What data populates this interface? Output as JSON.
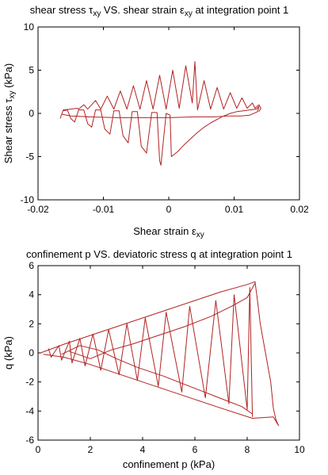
{
  "chart_data": [
    {
      "type": "line",
      "title_parts": [
        "shear stress ",
        "τ",
        "xy",
        " VS. shear strain ",
        "ε",
        "xy",
        " at integration point 1"
      ],
      "xlabel_parts": [
        "Shear strain ",
        "ε",
        "xy"
      ],
      "ylabel_parts": [
        "Shear stress ",
        "τ",
        "xy",
        " (kPa)"
      ],
      "xlim": [
        -0.02,
        0.02
      ],
      "ylim": [
        -10,
        10
      ],
      "xticks": [
        -0.02,
        -0.01,
        0,
        0.01,
        0.02
      ],
      "xtick_labels": [
        "-0.02",
        "-0.01",
        "0",
        "0.01",
        "0.02"
      ],
      "yticks": [
        -10,
        -5,
        0,
        5,
        10
      ],
      "ytick_labels": [
        "-10",
        "-5",
        "0",
        "5",
        "10"
      ],
      "grid": false,
      "color": "#b22222",
      "series": [
        {
          "points": [
            [
              -0.0166,
              -0.6
            ],
            [
              -0.0162,
              0.3
            ],
            [
              -0.0155,
              0.4
            ],
            [
              -0.015,
              -0.6
            ],
            [
              -0.0144,
              -1.0
            ],
            [
              -0.0138,
              0.4
            ],
            [
              -0.013,
              0.4
            ],
            [
              -0.0124,
              -1.2
            ],
            [
              -0.0118,
              -1.6
            ],
            [
              -0.0112,
              0.4
            ],
            [
              -0.0104,
              0.4
            ],
            [
              -0.0098,
              -1.8
            ],
            [
              -0.009,
              -2.4
            ],
            [
              -0.0084,
              0.3
            ],
            [
              -0.0076,
              0.3
            ],
            [
              -0.007,
              -2.6
            ],
            [
              -0.0062,
              -3.4
            ],
            [
              -0.0056,
              0.2
            ],
            [
              -0.0048,
              0.2
            ],
            [
              -0.0042,
              -3.8
            ],
            [
              -0.0034,
              -4.6
            ],
            [
              -0.0026,
              0.1
            ],
            [
              -0.0018,
              0.1
            ],
            [
              -0.0014,
              -5.5
            ],
            [
              -0.0012,
              -6.0
            ],
            [
              -0.0004,
              0.0
            ],
            [
              0.0002,
              -0.2
            ],
            [
              0.0004,
              -5.0
            ],
            [
              0.0014,
              -4.4
            ],
            [
              0.0024,
              -3.6
            ],
            [
              0.0034,
              -2.9
            ],
            [
              0.0044,
              -2.2
            ],
            [
              0.0054,
              -1.6
            ],
            [
              0.0064,
              -1.1
            ],
            [
              0.0074,
              -0.7
            ],
            [
              0.0084,
              -0.3
            ],
            [
              0.0094,
              0.0
            ],
            [
              0.0104,
              0.2
            ],
            [
              0.0114,
              0.3
            ],
            [
              0.0124,
              0.4
            ],
            [
              0.0134,
              0.5
            ],
            [
              0.0138,
              0.8
            ],
            [
              0.0136,
              0.2
            ],
            [
              0.0124,
              -0.2
            ],
            [
              0.011,
              -0.3
            ],
            [
              0.009,
              -0.3
            ],
            [
              0.007,
              -0.4
            ],
            [
              0.004,
              -0.4
            ],
            [
              0.0,
              -0.5
            ],
            [
              -0.004,
              -0.5
            ],
            [
              -0.008,
              -0.5
            ],
            [
              -0.012,
              -0.4
            ],
            [
              -0.015,
              -0.3
            ],
            [
              -0.0163,
              -0.1
            ]
          ]
        },
        {
          "points": [
            [
              -0.0162,
              0.4
            ],
            [
              -0.015,
              0.5
            ],
            [
              -0.014,
              0.6
            ],
            [
              -0.0138,
              0.5
            ],
            [
              -0.013,
              1.0
            ],
            [
              -0.0124,
              0.5
            ],
            [
              -0.0112,
              1.5
            ],
            [
              -0.0104,
              0.5
            ],
            [
              -0.0094,
              2.0
            ],
            [
              -0.0084,
              0.5
            ],
            [
              -0.0074,
              2.6
            ],
            [
              -0.0064,
              0.5
            ],
            [
              -0.0054,
              3.2
            ],
            [
              -0.0044,
              0.5
            ],
            [
              -0.0034,
              3.8
            ],
            [
              -0.0024,
              0.5
            ],
            [
              -0.0014,
              4.4
            ],
            [
              -0.0004,
              0.5
            ],
            [
              0.0006,
              5.0
            ],
            [
              0.0016,
              0.6
            ],
            [
              0.0026,
              5.5
            ],
            [
              0.0036,
              1.2
            ],
            [
              0.004,
              6.0
            ],
            [
              0.0044,
              0.4
            ],
            [
              0.0054,
              3.8
            ],
            [
              0.0064,
              0.5
            ],
            [
              0.0074,
              3.0
            ],
            [
              0.0084,
              0.5
            ],
            [
              0.0094,
              2.4
            ],
            [
              0.0104,
              0.6
            ],
            [
              0.0112,
              1.8
            ],
            [
              0.012,
              0.6
            ],
            [
              0.0128,
              1.2
            ],
            [
              0.0132,
              0.6
            ],
            [
              0.0138,
              1.0
            ],
            [
              0.0141,
              0.6
            ],
            [
              0.0138,
              0.2
            ]
          ]
        }
      ]
    },
    {
      "type": "line",
      "title_parts": [
        "confinement p VS. deviatoric stress q at integration point 1"
      ],
      "xlabel_parts": [
        "confinement p (kPa)"
      ],
      "ylabel_parts": [
        "q (kPa)"
      ],
      "xlim": [
        0,
        10
      ],
      "ylim": [
        -6,
        6
      ],
      "xticks": [
        0,
        2,
        4,
        6,
        8,
        10
      ],
      "xtick_labels": [
        "0",
        "2",
        "4",
        "6",
        "8",
        "10"
      ],
      "yticks": [
        -6,
        -4,
        -2,
        0,
        2,
        4,
        6
      ],
      "ytick_labels": [
        "-6",
        "-4",
        "-2",
        "0",
        "2",
        "4",
        "6"
      ],
      "grid": false,
      "color": "#b22222",
      "series": [
        {
          "points": [
            [
              0.1,
              0.0
            ],
            [
              1.0,
              0.6
            ],
            [
              2.0,
              1.2
            ],
            [
              3.0,
              1.8
            ],
            [
              4.0,
              2.4
            ],
            [
              5.0,
              3.0
            ],
            [
              6.0,
              3.6
            ],
            [
              7.0,
              4.2
            ],
            [
              8.0,
              4.7
            ],
            [
              8.3,
              4.9
            ],
            [
              8.4,
              3.5
            ],
            [
              8.5,
              2.0
            ],
            [
              8.7,
              0.0
            ],
            [
              8.9,
              -2.0
            ],
            [
              9.0,
              -3.8
            ],
            [
              9.1,
              -4.6
            ],
            [
              9.2,
              -5.0
            ],
            [
              9.0,
              -4.4
            ],
            [
              8.2,
              -4.5
            ],
            [
              7.0,
              -3.8
            ],
            [
              6.0,
              -3.2
            ],
            [
              5.0,
              -2.6
            ],
            [
              4.0,
              -2.0
            ],
            [
              3.0,
              -1.4
            ],
            [
              2.0,
              -0.8
            ],
            [
              1.0,
              -0.3
            ],
            [
              0.2,
              -0.1
            ]
          ]
        },
        {
          "points": [
            [
              0.4,
              0.3
            ],
            [
              0.5,
              -0.3
            ],
            [
              0.8,
              0.5
            ],
            [
              0.9,
              -0.5
            ],
            [
              1.2,
              0.8
            ],
            [
              1.3,
              -0.7
            ],
            [
              1.6,
              1.0
            ],
            [
              1.8,
              -0.9
            ],
            [
              2.1,
              1.3
            ],
            [
              2.4,
              -1.2
            ],
            [
              2.7,
              1.6
            ],
            [
              3.1,
              -1.5
            ],
            [
              3.4,
              2.0
            ],
            [
              3.8,
              -1.9
            ],
            [
              4.1,
              2.4
            ],
            [
              4.6,
              -2.3
            ],
            [
              4.9,
              2.8
            ],
            [
              5.5,
              -2.7
            ],
            [
              5.8,
              3.2
            ],
            [
              6.4,
              -3.1
            ],
            [
              6.8,
              3.6
            ],
            [
              7.3,
              -3.5
            ],
            [
              7.5,
              4.0
            ],
            [
              8.0,
              -3.9
            ],
            [
              8.1,
              4.5
            ],
            [
              8.2,
              -4.4
            ]
          ]
        },
        {
          "points": [
            [
              0.9,
              -0.1
            ],
            [
              1.6,
              0.5
            ],
            [
              2.3,
              0.2
            ],
            [
              3.0,
              -0.4
            ],
            [
              3.8,
              -1.0
            ],
            [
              4.8,
              -1.6
            ],
            [
              5.8,
              -2.3
            ],
            [
              6.8,
              -3.0
            ],
            [
              7.8,
              -3.7
            ],
            [
              8.2,
              -4.2
            ]
          ]
        },
        {
          "points": [
            [
              1.2,
              0.1
            ],
            [
              2.0,
              -0.4
            ],
            [
              2.8,
              0.2
            ],
            [
              3.6,
              0.6
            ],
            [
              4.6,
              1.2
            ],
            [
              5.6,
              1.8
            ],
            [
              6.6,
              2.5
            ],
            [
              7.4,
              3.2
            ],
            [
              8.0,
              3.8
            ],
            [
              8.3,
              4.8
            ]
          ]
        }
      ]
    }
  ]
}
